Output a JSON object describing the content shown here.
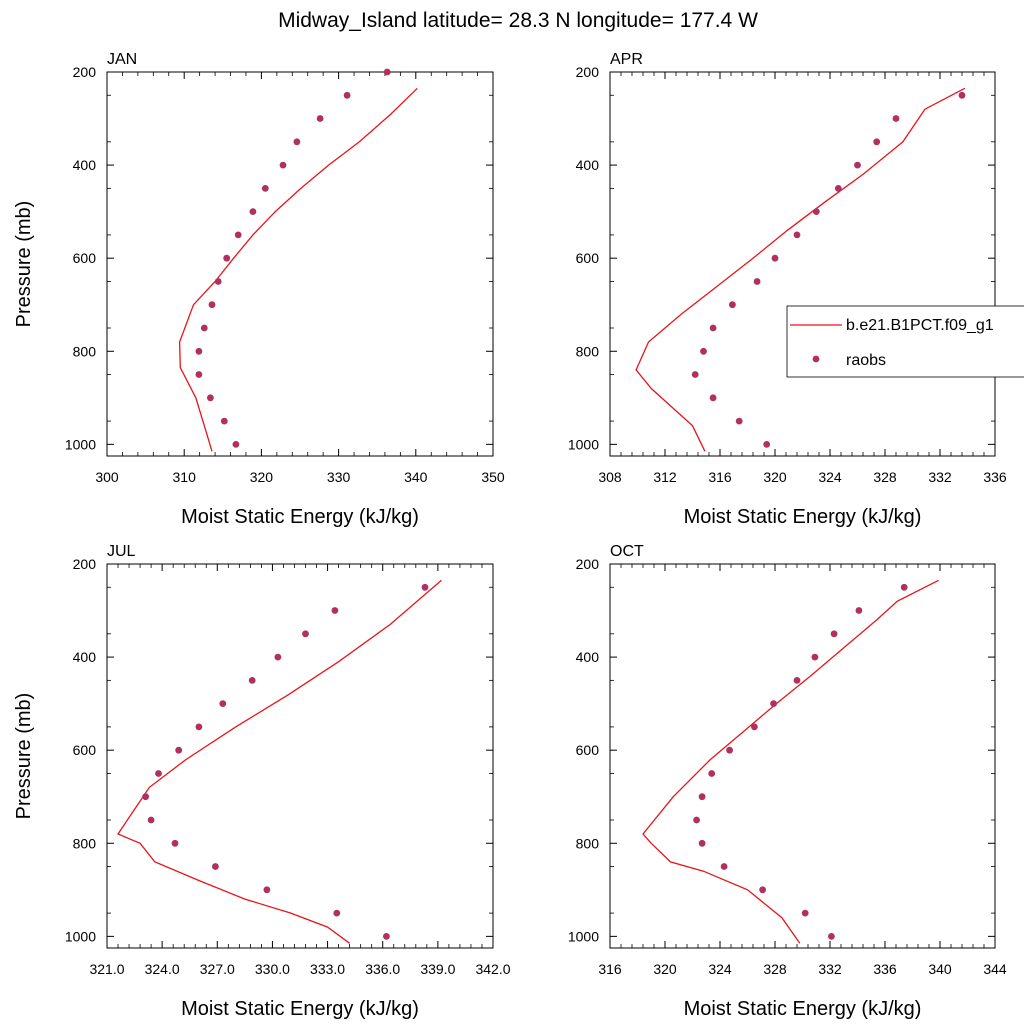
{
  "figure": {
    "title": "Midway_Island  latitude= 28.3 N longitude= 177.4 W",
    "legend": {
      "model_label": "b.e21.B1PCT.f09_g1",
      "obs_label": "raobs",
      "model_color": "#e8141a",
      "obs_color": "#b03060",
      "placement": "right of APR panel"
    }
  },
  "chart_data": [
    {
      "type": "line",
      "panel": "JAN",
      "title": "JAN",
      "xlabel": "Moist Static Energy (kJ/kg)",
      "ylabel": "Pressure (mb)",
      "xlim": [
        300,
        350
      ],
      "ylim": [
        200,
        1025
      ],
      "y_reversed": true,
      "xticks": [
        "300",
        "310",
        "320",
        "330",
        "340",
        "350"
      ],
      "yticks": [
        "200",
        "400",
        "600",
        "800",
        "1000"
      ],
      "series": [
        {
          "name": "b.e21.B1PCT.f09_g1",
          "style": "line",
          "color": "#e8141a",
          "x": [
            313.6,
            312.6,
            311.5,
            309.5,
            309.4,
            311.2,
            314,
            316.4,
            318.9,
            321.8,
            325.1,
            328.7,
            332.7,
            336.8,
            340.2
          ],
          "y": [
            1015,
            960,
            900,
            835,
            780,
            700,
            650,
            600,
            550,
            500,
            450,
            400,
            350,
            290,
            235
          ]
        },
        {
          "name": "raobs",
          "style": "scatter",
          "color": "#b03060",
          "x": [
            316.7,
            315.2,
            313.4,
            311.9,
            311.9,
            312.6,
            313.6,
            314.4,
            315.5,
            317,
            318.9,
            320.5,
            322.8,
            324.6,
            327.6,
            331.1,
            336.3
          ],
          "y": [
            1000,
            950,
            900,
            850,
            800,
            750,
            700,
            650,
            600,
            550,
            500,
            450,
            400,
            350,
            300,
            250,
            200
          ]
        }
      ]
    },
    {
      "type": "line",
      "panel": "APR",
      "title": "APR",
      "xlabel": "Moist Static Energy (kJ/kg)",
      "ylabel": "",
      "xlim": [
        308,
        336
      ],
      "ylim": [
        200,
        1025
      ],
      "y_reversed": true,
      "xticks": [
        "308",
        "312",
        "316",
        "320",
        "324",
        "328",
        "332",
        "336"
      ],
      "yticks": [
        "200",
        "400",
        "600",
        "800",
        "1000"
      ],
      "series": [
        {
          "name": "b.e21.B1PCT.f09_g1",
          "style": "line",
          "color": "#e8141a",
          "x": [
            314.9,
            314,
            312.5,
            311,
            309.9,
            310.8,
            313.2,
            315.8,
            318.4,
            320.9,
            323.6,
            326.4,
            329.3,
            330.9,
            333.8
          ],
          "y": [
            1015,
            960,
            920,
            880,
            840,
            780,
            720,
            660,
            600,
            540,
            480,
            420,
            350,
            280,
            235
          ]
        },
        {
          "name": "raobs",
          "style": "scatter",
          "color": "#b03060",
          "x": [
            319.4,
            317.4,
            315.5,
            314.2,
            314.8,
            315.5,
            316.9,
            318.7,
            320,
            321.6,
            323,
            324.6,
            326,
            327.4,
            328.8,
            333.6
          ],
          "y": [
            1000,
            950,
            900,
            850,
            800,
            750,
            700,
            650,
            600,
            550,
            500,
            450,
            400,
            350,
            300,
            250
          ]
        }
      ]
    },
    {
      "type": "line",
      "panel": "JUL",
      "title": "JUL",
      "xlabel": "Moist Static Energy (kJ/kg)",
      "ylabel": "Pressure (mb)",
      "xlim": [
        321,
        342
      ],
      "ylim": [
        200,
        1025
      ],
      "y_reversed": true,
      "xticks": [
        "321.0",
        "324.0",
        "327.0",
        "330.0",
        "333.0",
        "336.0",
        "339.0",
        "342.0"
      ],
      "yticks": [
        "200",
        "400",
        "600",
        "800",
        "1000"
      ],
      "series": [
        {
          "name": "b.e21.B1PCT.f09_g1",
          "style": "line",
          "color": "#e8141a",
          "x": [
            334.2,
            333,
            331,
            328.5,
            326,
            323.6,
            322.8,
            321.6,
            323.3,
            325.3,
            328,
            330.9,
            333.6,
            336.4,
            339.2
          ],
          "y": [
            1015,
            980,
            950,
            920,
            880,
            840,
            800,
            780,
            680,
            620,
            550,
            480,
            410,
            330,
            235
          ]
        },
        {
          "name": "raobs",
          "style": "scatter",
          "color": "#b03060",
          "x": [
            336.2,
            333.5,
            329.7,
            326.9,
            324.7,
            323.4,
            323.1,
            323.8,
            324.9,
            326,
            327.3,
            328.9,
            330.3,
            331.8,
            333.4,
            338.3
          ],
          "y": [
            1000,
            950,
            900,
            850,
            800,
            750,
            700,
            650,
            600,
            550,
            500,
            450,
            400,
            350,
            300,
            250
          ]
        }
      ]
    },
    {
      "type": "line",
      "panel": "OCT",
      "title": "OCT",
      "xlabel": "Moist Static Energy (kJ/kg)",
      "ylabel": "",
      "xlim": [
        316,
        344
      ],
      "ylim": [
        200,
        1025
      ],
      "y_reversed": true,
      "xticks": [
        "316",
        "320",
        "324",
        "328",
        "332",
        "336",
        "340",
        "344"
      ],
      "yticks": [
        "200",
        "400",
        "600",
        "800",
        "1000"
      ],
      "series": [
        {
          "name": "b.e21.B1PCT.f09_g1",
          "style": "line",
          "color": "#e8141a",
          "x": [
            329.8,
            328.5,
            326,
            322.8,
            320.4,
            319,
            318.4,
            320.6,
            323.3,
            325.7,
            328.1,
            330.6,
            333,
            335.4,
            336.9,
            339.9
          ],
          "y": [
            1015,
            960,
            900,
            860,
            840,
            800,
            780,
            700,
            620,
            560,
            500,
            440,
            380,
            320,
            280,
            235
          ]
        },
        {
          "name": "raobs",
          "style": "scatter",
          "color": "#b03060",
          "x": [
            332.1,
            330.2,
            327.1,
            324.3,
            322.7,
            322.3,
            322.7,
            323.4,
            324.7,
            326.5,
            327.9,
            329.6,
            330.9,
            332.3,
            334.1,
            337.4
          ],
          "y": [
            1000,
            950,
            900,
            850,
            800,
            750,
            700,
            650,
            600,
            550,
            500,
            450,
            400,
            350,
            300,
            250
          ]
        }
      ]
    }
  ]
}
